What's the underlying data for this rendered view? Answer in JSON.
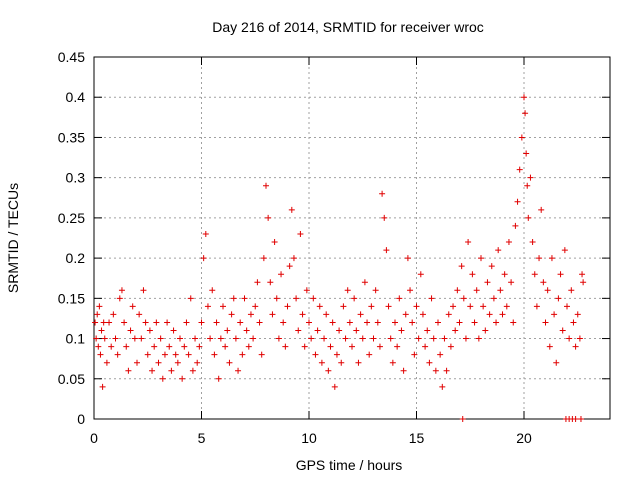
{
  "chart_data": {
    "type": "scatter",
    "title": "Day 216 of 2014, SRMTID for receiver wroc",
    "xlabel": "GPS time / hours",
    "ylabel": "SRMTID / TECUs",
    "xlim": [
      0,
      24
    ],
    "ylim": [
      0,
      0.45
    ],
    "xticks": [
      0,
      5,
      10,
      15,
      20
    ],
    "xtick_labels": [
      "0",
      "5",
      "10",
      "15",
      "20"
    ],
    "yticks": [
      0,
      0.05,
      0.1,
      0.15,
      0.2,
      0.25,
      0.3,
      0.35,
      0.4,
      0.45
    ],
    "ytick_labels": [
      "0",
      "0.05",
      "0.1",
      "0.15",
      "0.2",
      "0.25",
      "0.3",
      "0.35",
      "0.4",
      "0.45"
    ],
    "grid": true,
    "marker": "+",
    "color": "#e00000",
    "series": [
      {
        "name": "SRMTID",
        "points": [
          [
            0.05,
            0.12
          ],
          [
            0.1,
            0.1
          ],
          [
            0.15,
            0.13
          ],
          [
            0.2,
            0.09
          ],
          [
            0.25,
            0.14
          ],
          [
            0.3,
            0.08
          ],
          [
            0.35,
            0.11
          ],
          [
            0.4,
            0.04
          ],
          [
            0.45,
            0.12
          ],
          [
            0.5,
            0.1
          ],
          [
            0.6,
            0.07
          ],
          [
            0.7,
            0.12
          ],
          [
            0.8,
            0.09
          ],
          [
            0.9,
            0.13
          ],
          [
            1.0,
            0.1
          ],
          [
            1.1,
            0.08
          ],
          [
            1.2,
            0.15
          ],
          [
            1.3,
            0.16
          ],
          [
            1.4,
            0.12
          ],
          [
            1.5,
            0.09
          ],
          [
            1.6,
            0.06
          ],
          [
            1.7,
            0.11
          ],
          [
            1.8,
            0.14
          ],
          [
            1.9,
            0.1
          ],
          [
            2.0,
            0.07
          ],
          [
            2.1,
            0.13
          ],
          [
            2.2,
            0.1
          ],
          [
            2.3,
            0.16
          ],
          [
            2.4,
            0.12
          ],
          [
            2.5,
            0.08
          ],
          [
            2.6,
            0.11
          ],
          [
            2.7,
            0.06
          ],
          [
            2.8,
            0.09
          ],
          [
            2.9,
            0.12
          ],
          [
            3.0,
            0.07
          ],
          [
            3.1,
            0.1
          ],
          [
            3.2,
            0.05
          ],
          [
            3.3,
            0.08
          ],
          [
            3.4,
            0.12
          ],
          [
            3.5,
            0.09
          ],
          [
            3.6,
            0.06
          ],
          [
            3.7,
            0.11
          ],
          [
            3.8,
            0.08
          ],
          [
            3.9,
            0.07
          ],
          [
            4.0,
            0.1
          ],
          [
            4.1,
            0.05
          ],
          [
            4.2,
            0.09
          ],
          [
            4.3,
            0.12
          ],
          [
            4.4,
            0.08
          ],
          [
            4.5,
            0.15
          ],
          [
            4.6,
            0.06
          ],
          [
            4.7,
            0.1
          ],
          [
            4.8,
            0.07
          ],
          [
            4.9,
            0.09
          ],
          [
            5.0,
            0.12
          ],
          [
            5.1,
            0.2
          ],
          [
            5.2,
            0.23
          ],
          [
            5.3,
            0.14
          ],
          [
            5.4,
            0.1
          ],
          [
            5.5,
            0.16
          ],
          [
            5.6,
            0.08
          ],
          [
            5.7,
            0.12
          ],
          [
            5.8,
            0.05
          ],
          [
            5.9,
            0.1
          ],
          [
            6.0,
            0.14
          ],
          [
            6.1,
            0.09
          ],
          [
            6.2,
            0.11
          ],
          [
            6.3,
            0.07
          ],
          [
            6.4,
            0.13
          ],
          [
            6.5,
            0.15
          ],
          [
            6.6,
            0.1
          ],
          [
            6.7,
            0.06
          ],
          [
            6.8,
            0.12
          ],
          [
            6.9,
            0.08
          ],
          [
            7.0,
            0.15
          ],
          [
            7.1,
            0.11
          ],
          [
            7.2,
            0.09
          ],
          [
            7.3,
            0.13
          ],
          [
            7.4,
            0.1
          ],
          [
            7.5,
            0.14
          ],
          [
            7.6,
            0.17
          ],
          [
            7.7,
            0.12
          ],
          [
            7.8,
            0.08
          ],
          [
            7.9,
            0.2
          ],
          [
            8.0,
            0.29
          ],
          [
            8.1,
            0.25
          ],
          [
            8.2,
            0.17
          ],
          [
            8.3,
            0.13
          ],
          [
            8.4,
            0.22
          ],
          [
            8.5,
            0.15
          ],
          [
            8.6,
            0.1
          ],
          [
            8.7,
            0.18
          ],
          [
            8.8,
            0.12
          ],
          [
            8.9,
            0.09
          ],
          [
            9.0,
            0.14
          ],
          [
            9.1,
            0.19
          ],
          [
            9.2,
            0.26
          ],
          [
            9.3,
            0.2
          ],
          [
            9.4,
            0.15
          ],
          [
            9.5,
            0.11
          ],
          [
            9.6,
            0.23
          ],
          [
            9.7,
            0.13
          ],
          [
            9.8,
            0.09
          ],
          [
            9.9,
            0.16
          ],
          [
            10.0,
            0.12
          ],
          [
            10.1,
            0.1
          ],
          [
            10.2,
            0.15
          ],
          [
            10.3,
            0.08
          ],
          [
            10.4,
            0.11
          ],
          [
            10.5,
            0.14
          ],
          [
            10.6,
            0.07
          ],
          [
            10.7,
            0.1
          ],
          [
            10.8,
            0.13
          ],
          [
            10.9,
            0.06
          ],
          [
            11.0,
            0.09
          ],
          [
            11.1,
            0.12
          ],
          [
            11.2,
            0.04
          ],
          [
            11.3,
            0.08
          ],
          [
            11.4,
            0.11
          ],
          [
            11.5,
            0.07
          ],
          [
            11.6,
            0.14
          ],
          [
            11.7,
            0.1
          ],
          [
            11.8,
            0.16
          ],
          [
            11.9,
            0.12
          ],
          [
            12.0,
            0.09
          ],
          [
            12.1,
            0.15
          ],
          [
            12.2,
            0.11
          ],
          [
            12.3,
            0.07
          ],
          [
            12.4,
            0.13
          ],
          [
            12.5,
            0.1
          ],
          [
            12.6,
            0.17
          ],
          [
            12.7,
            0.12
          ],
          [
            12.8,
            0.08
          ],
          [
            12.9,
            0.14
          ],
          [
            13.0,
            0.1
          ],
          [
            13.1,
            0.16
          ],
          [
            13.2,
            0.12
          ],
          [
            13.3,
            0.09
          ],
          [
            13.4,
            0.28
          ],
          [
            13.5,
            0.25
          ],
          [
            13.6,
            0.21
          ],
          [
            13.7,
            0.14
          ],
          [
            13.8,
            0.1
          ],
          [
            13.9,
            0.07
          ],
          [
            14.0,
            0.12
          ],
          [
            14.1,
            0.09
          ],
          [
            14.2,
            0.15
          ],
          [
            14.3,
            0.11
          ],
          [
            14.4,
            0.06
          ],
          [
            14.5,
            0.13
          ],
          [
            14.6,
            0.2
          ],
          [
            14.7,
            0.16
          ],
          [
            14.8,
            0.12
          ],
          [
            14.9,
            0.08
          ],
          [
            15.0,
            0.14
          ],
          [
            15.1,
            0.1
          ],
          [
            15.2,
            0.18
          ],
          [
            15.3,
            0.13
          ],
          [
            15.4,
            0.09
          ],
          [
            15.5,
            0.11
          ],
          [
            15.6,
            0.07
          ],
          [
            15.7,
            0.15
          ],
          [
            15.8,
            0.1
          ],
          [
            15.9,
            0.06
          ],
          [
            16.0,
            0.12
          ],
          [
            16.1,
            0.08
          ],
          [
            16.2,
            0.04
          ],
          [
            16.3,
            0.1
          ],
          [
            16.4,
            0.06
          ],
          [
            16.5,
            0.13
          ],
          [
            16.6,
            0.09
          ],
          [
            16.7,
            0.14
          ],
          [
            16.8,
            0.11
          ],
          [
            16.9,
            0.16
          ],
          [
            17.0,
            0.12
          ],
          [
            17.1,
            0.19
          ],
          [
            17.2,
            0.15
          ],
          [
            17.3,
            0.1
          ],
          [
            17.4,
            0.22
          ],
          [
            17.5,
            0.14
          ],
          [
            17.6,
            0.18
          ],
          [
            17.7,
            0.12
          ],
          [
            17.8,
            0.16
          ],
          [
            17.9,
            0.1
          ],
          [
            18.0,
            0.2
          ],
          [
            18.1,
            0.14
          ],
          [
            18.2,
            0.11
          ],
          [
            18.3,
            0.17
          ],
          [
            18.4,
            0.13
          ],
          [
            18.5,
            0.19
          ],
          [
            18.6,
            0.15
          ],
          [
            18.7,
            0.12
          ],
          [
            18.8,
            0.21
          ],
          [
            18.9,
            0.16
          ],
          [
            19.0,
            0.13
          ],
          [
            19.1,
            0.18
          ],
          [
            19.2,
            0.14
          ],
          [
            19.3,
            0.22
          ],
          [
            19.4,
            0.17
          ],
          [
            19.5,
            0.12
          ],
          [
            19.6,
            0.24
          ],
          [
            19.7,
            0.27
          ],
          [
            19.8,
            0.31
          ],
          [
            19.9,
            0.35
          ],
          [
            20.0,
            0.4
          ],
          [
            20.05,
            0.38
          ],
          [
            20.1,
            0.33
          ],
          [
            20.15,
            0.29
          ],
          [
            20.2,
            0.25
          ],
          [
            20.3,
            0.3
          ],
          [
            20.4,
            0.22
          ],
          [
            20.5,
            0.18
          ],
          [
            20.6,
            0.14
          ],
          [
            20.7,
            0.2
          ],
          [
            20.8,
            0.26
          ],
          [
            20.9,
            0.17
          ],
          [
            21.0,
            0.12
          ],
          [
            21.1,
            0.16
          ],
          [
            21.2,
            0.09
          ],
          [
            21.3,
            0.2
          ],
          [
            21.4,
            0.13
          ],
          [
            21.5,
            0.07
          ],
          [
            21.6,
            0.15
          ],
          [
            21.7,
            0.18
          ],
          [
            21.8,
            0.11
          ],
          [
            21.9,
            0.21
          ],
          [
            22.0,
            0.14
          ],
          [
            22.1,
            0.1
          ],
          [
            22.2,
            0.16
          ],
          [
            22.3,
            0.12
          ],
          [
            22.4,
            0.09
          ],
          [
            22.5,
            0.13
          ],
          [
            22.6,
            0.1
          ],
          [
            22.7,
            0.18
          ],
          [
            22.75,
            0.17
          ],
          [
            17.15,
            0.0
          ],
          [
            21.95,
            0.0
          ],
          [
            22.1,
            0.0
          ],
          [
            22.25,
            0.0
          ],
          [
            22.4,
            0.0
          ],
          [
            22.65,
            0.0
          ]
        ]
      }
    ]
  }
}
